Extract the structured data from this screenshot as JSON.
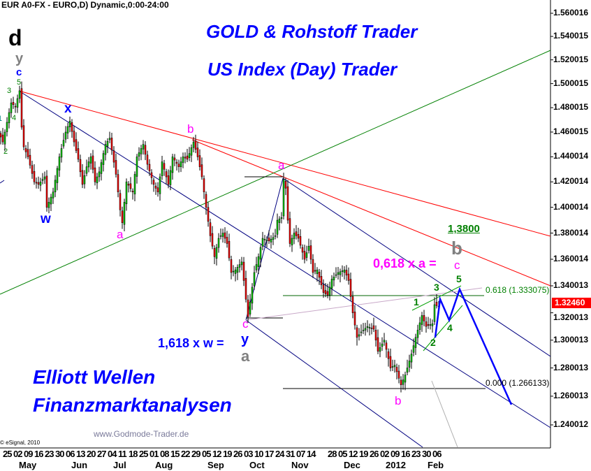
{
  "header": {
    "symbol_line": "EUR A0-FX - EURO,D) Dynamic,0:00-24:00"
  },
  "titles": {
    "line1": "GOLD & Rohstoff Trader",
    "line2": "US Index (Day) Trader",
    "line3": "Elliott Wellen",
    "line4": "Finanzmarktanalysen",
    "website": "www.Godmode-Trader.de",
    "copyright": "© eSignal, 2010"
  },
  "colors": {
    "up": "#00cc00",
    "down": "#ff0000",
    "title": "#0000ff",
    "wave_magenta": "#ff00ff",
    "wave_green": "#008000",
    "wave_gray": "#808080",
    "last_price_bg": "#ff0000"
  },
  "annotations": {
    "d": "d",
    "y_top": "y",
    "c_top": "c",
    "w5_top": "5",
    "w3_top": "3",
    "w4_top": "4",
    "w2_top": "2",
    "w1_top": "1",
    "x": "x",
    "w": "w",
    "a_jul": "a",
    "b_aug": "b",
    "a_oct": "a",
    "c_oct": "c",
    "y_oct": "y",
    "a_gray": "a",
    "fib_w": "1,618 x w =",
    "target": "1,3800",
    "b_gray": "b",
    "fib_a": "0,618 x a =",
    "c_target": "c",
    "n5": "5",
    "n3": "3",
    "n1": "1",
    "n4": "4",
    "n2": "2",
    "b_jan": "b",
    "fib618": "0.618 (1.333075)",
    "fib000": "0.000 (1.266133)"
  },
  "chart_data": {
    "type": "candlestick",
    "title": "EUR A0-FX - EURO,D) Dynamic,0:00-24:00",
    "y_scale": "log",
    "ylim": [
      1.228,
      1.575
    ],
    "y_ticks": [
      "1.560016",
      "1.540015",
      "1.520015",
      "1.500015",
      "1.480015",
      "1.460015",
      "1.440014",
      "1.420014",
      "1.400014",
      "1.380014",
      "1.360014",
      "1.340013",
      "1.320013",
      "1.300013",
      "1.280013",
      "1.260013",
      "1.240012"
    ],
    "last_price": "1.32460",
    "x_day_labels": [
      "25",
      "02",
      "09",
      "16",
      "23",
      "30",
      "06",
      "13",
      "20",
      "27",
      "04",
      "11",
      "18",
      "25",
      "01",
      "08",
      "15",
      "22",
      "29",
      "05",
      "12",
      "19",
      "26",
      "03",
      "10",
      "17",
      "24",
      "31",
      "07",
      "14",
      "",
      "28",
      "05",
      "12",
      "19",
      "26",
      "02",
      "09",
      "16",
      "23",
      "30",
      "06"
    ],
    "x_month_labels": [
      {
        "label": "May",
        "week": 1
      },
      {
        "label": "Jun",
        "week": 6
      },
      {
        "label": "Jul",
        "week": 10
      },
      {
        "label": "Aug",
        "week": 14
      },
      {
        "label": "Sep",
        "week": 19
      },
      {
        "label": "Oct",
        "week": 23
      },
      {
        "label": "Nov",
        "week": 27
      },
      {
        "label": "Dec",
        "week": 32
      },
      {
        "label": "2012",
        "week": 36
      },
      {
        "label": "Feb",
        "week": 40
      }
    ],
    "grid": false,
    "fib_levels": [
      {
        "ratio": "0.618",
        "price": 1.333075
      },
      {
        "ratio": "0.000",
        "price": 1.266133
      }
    ],
    "pivots": [
      [
        "2011-04-21",
        1.456
      ],
      [
        "2011-04-22",
        1.452
      ],
      [
        "2011-04-26",
        1.468
      ],
      [
        "2011-04-28",
        1.484
      ],
      [
        "2011-05-02",
        1.481
      ],
      [
        "2011-05-04",
        1.494
      ],
      [
        "2011-05-05",
        1.464
      ],
      [
        "2011-05-06",
        1.448
      ],
      [
        "2011-05-10",
        1.44
      ],
      [
        "2011-05-13",
        1.42
      ],
      [
        "2011-05-17",
        1.418
      ],
      [
        "2011-05-20",
        1.424
      ],
      [
        "2011-05-23",
        1.4
      ],
      [
        "2011-05-26",
        1.412
      ],
      [
        "2011-05-31",
        1.44
      ],
      [
        "2011-06-03",
        1.46
      ],
      [
        "2011-06-07",
        1.469
      ],
      [
        "2011-06-09",
        1.452
      ],
      [
        "2011-06-13",
        1.438
      ],
      [
        "2011-06-15",
        1.418
      ],
      [
        "2011-06-17",
        1.432
      ],
      [
        "2011-06-21",
        1.44
      ],
      [
        "2011-06-23",
        1.42
      ],
      [
        "2011-06-27",
        1.428
      ],
      [
        "2011-06-30",
        1.45
      ],
      [
        "2011-07-04",
        1.455
      ],
      [
        "2011-07-07",
        1.426
      ],
      [
        "2011-07-11",
        1.398
      ],
      [
        "2011-07-12",
        1.388
      ],
      [
        "2011-07-14",
        1.42
      ],
      [
        "2011-07-19",
        1.412
      ],
      [
        "2011-07-21",
        1.44
      ],
      [
        "2011-07-26",
        1.45
      ],
      [
        "2011-07-28",
        1.434
      ],
      [
        "2011-08-02",
        1.418
      ],
      [
        "2011-08-04",
        1.412
      ],
      [
        "2011-08-08",
        1.436
      ],
      [
        "2011-08-11",
        1.418
      ],
      [
        "2011-08-15",
        1.44
      ],
      [
        "2011-08-18",
        1.432
      ],
      [
        "2011-08-22",
        1.44
      ],
      [
        "2011-08-24",
        1.438
      ],
      [
        "2011-08-29",
        1.452
      ],
      [
        "2011-08-31",
        1.44
      ],
      [
        "2011-09-02",
        1.424
      ],
      [
        "2011-09-06",
        1.4
      ],
      [
        "2011-09-08",
        1.378
      ],
      [
        "2011-09-12",
        1.362
      ],
      [
        "2011-09-14",
        1.376
      ],
      [
        "2011-09-16",
        1.38
      ],
      [
        "2011-09-20",
        1.372
      ],
      [
        "2011-09-22",
        1.35
      ],
      [
        "2011-09-26",
        1.352
      ],
      [
        "2011-09-29",
        1.358
      ],
      [
        "2011-10-03",
        1.33
      ],
      [
        "2011-10-04",
        1.317
      ],
      [
        "2011-10-07",
        1.35
      ],
      [
        "2011-10-11",
        1.362
      ],
      [
        "2011-10-13",
        1.376
      ],
      [
        "2011-10-18",
        1.374
      ],
      [
        "2011-10-21",
        1.378
      ],
      [
        "2011-10-24",
        1.39
      ],
      [
        "2011-10-26",
        1.392
      ],
      [
        "2011-10-27",
        1.422
      ],
      [
        "2011-10-28",
        1.415
      ],
      [
        "2011-10-31",
        1.39
      ],
      [
        "2011-11-01",
        1.372
      ],
      [
        "2011-11-03",
        1.38
      ],
      [
        "2011-11-07",
        1.376
      ],
      [
        "2011-11-10",
        1.36
      ],
      [
        "2011-11-14",
        1.37
      ],
      [
        "2011-11-16",
        1.35
      ],
      [
        "2011-11-18",
        1.352
      ],
      [
        "2011-11-23",
        1.335
      ],
      [
        "2011-11-25",
        1.333
      ],
      [
        "2011-11-29",
        1.345
      ],
      [
        "2011-12-02",
        1.35
      ],
      [
        "2011-12-07",
        1.352
      ],
      [
        "2011-12-09",
        1.344
      ],
      [
        "2011-12-13",
        1.32
      ],
      [
        "2011-12-15",
        1.302
      ],
      [
        "2011-12-19",
        1.306
      ],
      [
        "2011-12-22",
        1.31
      ],
      [
        "2011-12-27",
        1.308
      ],
      [
        "2011-12-29",
        1.292
      ],
      [
        "2012-01-03",
        1.3
      ],
      [
        "2012-01-06",
        1.28
      ],
      [
        "2012-01-10",
        1.282
      ],
      [
        "2012-01-13",
        1.268
      ],
      [
        "2012-01-17",
        1.275
      ],
      [
        "2012-01-20",
        1.29
      ],
      [
        "2012-01-24",
        1.302
      ],
      [
        "2012-01-27",
        1.318
      ],
      [
        "2012-01-31",
        1.31
      ],
      [
        "2012-02-03",
        1.312
      ],
      [
        "2012-02-06",
        1.326
      ],
      [
        "2012-02-08",
        1.3246
      ]
    ]
  }
}
